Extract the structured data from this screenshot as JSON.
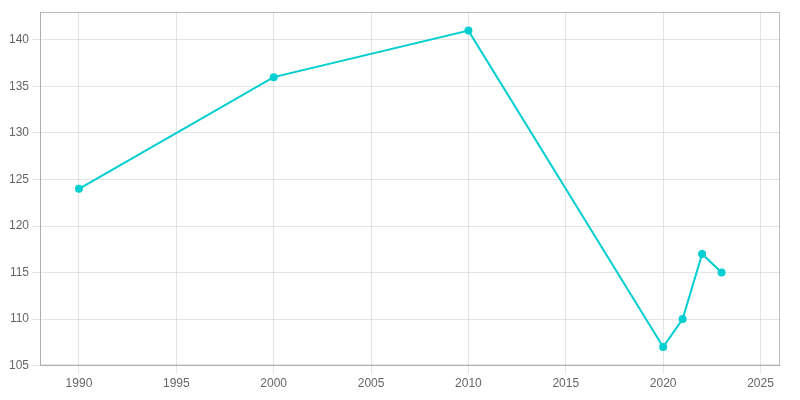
{
  "chart_data": {
    "type": "line",
    "x": [
      1990,
      2000,
      2010,
      2020,
      2021,
      2022,
      2023
    ],
    "values": [
      124,
      136,
      141,
      107,
      110,
      117,
      115
    ],
    "color": "#00CED1",
    "marker": "circle",
    "xlim": [
      1988,
      2026
    ],
    "ylim": [
      105,
      143
    ],
    "xticks": [
      1990,
      1995,
      2000,
      2005,
      2010,
      2015,
      2020,
      2025
    ],
    "yticks": [
      105,
      110,
      115,
      120,
      125,
      130,
      135,
      140
    ],
    "grid": true
  }
}
